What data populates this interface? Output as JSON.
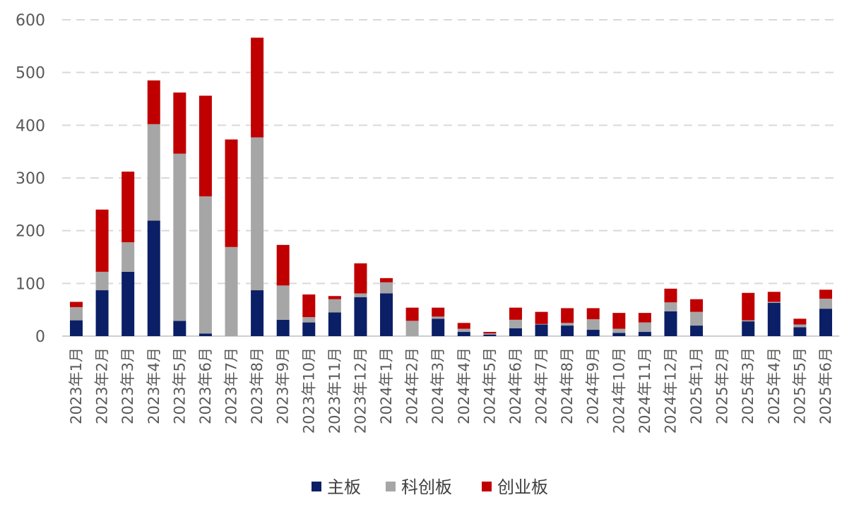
{
  "chart_data": {
    "type": "bar",
    "stacked": true,
    "categories": [
      "2023年1月",
      "2023年2月",
      "2023年3月",
      "2023年4月",
      "2023年5月",
      "2023年6月",
      "2023年7月",
      "2023年8月",
      "2023年9月",
      "2023年10月",
      "2023年11月",
      "2023年12月",
      "2024年1月",
      "2024年2月",
      "2024年3月",
      "2024年4月",
      "2024年5月",
      "2024年6月",
      "2024年7月",
      "2024年8月",
      "2024年9月",
      "2024年10月",
      "2024年11月",
      "2024年12月",
      "2025年1月",
      "2025年2月",
      "2025年3月",
      "2025年4月",
      "2025年5月",
      "2025年6月"
    ],
    "series": [
      {
        "name": "主板",
        "color": "#0b1f66",
        "values": [
          30,
          87,
          122,
          219,
          29,
          5,
          0,
          87,
          31,
          26,
          45,
          74,
          81,
          0,
          33,
          8,
          3,
          15,
          22,
          20,
          12,
          6,
          8,
          47,
          20,
          0,
          28,
          63,
          17,
          52
        ]
      },
      {
        "name": "科创板",
        "color": "#a6a6a6",
        "values": [
          25,
          35,
          56,
          183,
          317,
          260,
          169,
          290,
          65,
          10,
          25,
          7,
          21,
          29,
          4,
          6,
          2,
          16,
          1,
          5,
          20,
          8,
          18,
          17,
          26,
          0,
          2,
          2,
          5,
          19
        ]
      },
      {
        "name": "创业板",
        "color": "#c00000",
        "values": [
          10,
          118,
          134,
          83,
          116,
          191,
          204,
          189,
          77,
          43,
          6,
          57,
          8,
          25,
          17,
          11,
          3,
          23,
          23,
          28,
          21,
          30,
          18,
          26,
          24,
          0,
          52,
          19,
          11,
          17
        ]
      }
    ],
    "title": "",
    "xlabel": "",
    "ylabel": "",
    "ylim": [
      0,
      600
    ],
    "yticks": [
      "0",
      "100",
      "200",
      "300",
      "400",
      "500",
      "600"
    ],
    "grid": true,
    "legend_position": "bottom"
  }
}
